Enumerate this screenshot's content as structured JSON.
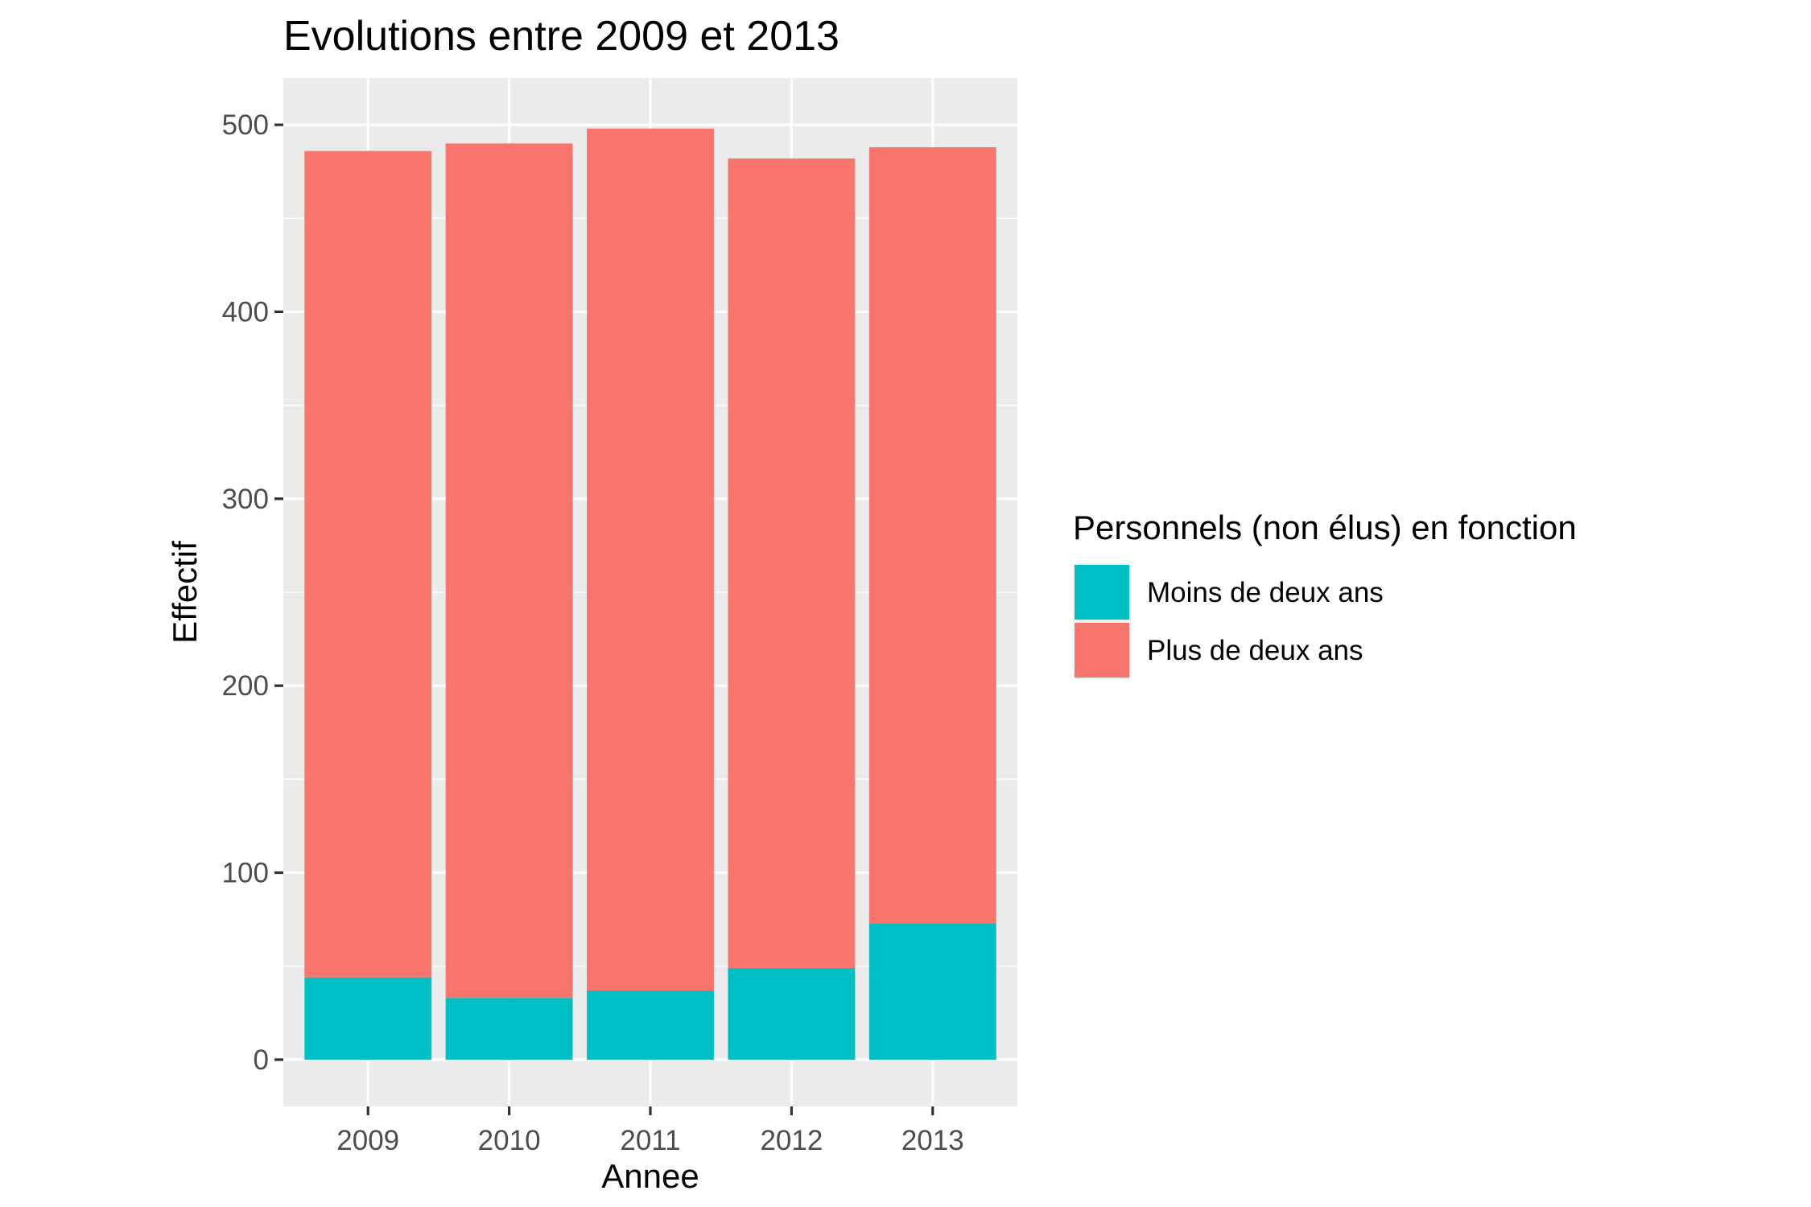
{
  "chart_data": {
    "type": "bar",
    "stacked": true,
    "title": "Evolutions entre 2009 et 2013",
    "xlabel": "Annee",
    "ylabel": "Effectif",
    "categories": [
      "2009",
      "2010",
      "2011",
      "2012",
      "2013"
    ],
    "ylim": [
      -25,
      525
    ],
    "yticks": [
      0,
      100,
      200,
      300,
      400,
      500
    ],
    "grid": true,
    "legend_position": "right",
    "legend_title": "Personnels (non élus) en fonction",
    "series": [
      {
        "name": "Moins de deux ans",
        "color": "#00BFC4",
        "values": [
          44,
          33,
          37,
          49,
          73
        ]
      },
      {
        "name": "Plus de deux ans",
        "color": "#F8766D",
        "values": [
          442,
          457,
          461,
          433,
          415
        ]
      }
    ],
    "panel_background": "#EBEBEB",
    "grid_color": "#FFFFFF"
  }
}
